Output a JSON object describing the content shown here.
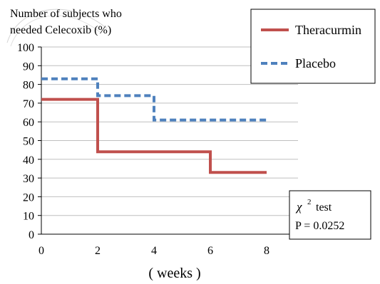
{
  "chart_data": {
    "type": "line",
    "step": true,
    "title": "Number of subjects who needed Celecoxib (%)",
    "ylabel": "Number of subjects who needed Celecoxib (%)",
    "xlabel": "( weeks )",
    "xlim": [
      0,
      8
    ],
    "ylim": [
      0,
      100
    ],
    "xticks": [
      0,
      2,
      4,
      6,
      8
    ],
    "yticks": [
      0,
      10,
      20,
      30,
      40,
      50,
      60,
      70,
      80,
      90,
      100
    ],
    "grid": true,
    "legend_position": "top-right",
    "series": [
      {
        "name": "Theracurmin",
        "color": "#c0504d",
        "dash": "solid",
        "points": [
          [
            0,
            72
          ],
          [
            2,
            72
          ],
          [
            2,
            44
          ],
          [
            6,
            44
          ],
          [
            6,
            33
          ],
          [
            8,
            33
          ]
        ]
      },
      {
        "name": "Placebo",
        "color": "#4f81bd",
        "dash": "dashed",
        "points": [
          [
            0,
            83
          ],
          [
            2,
            83
          ],
          [
            2,
            74
          ],
          [
            4,
            74
          ],
          [
            4,
            61
          ],
          [
            8,
            61
          ]
        ]
      }
    ],
    "annotation": {
      "line1_symbol": "χ",
      "line1_superscript": "2",
      "line1_text": "test",
      "line2": "P = 0.0252"
    }
  },
  "ylabel_lines": [
    "Number of subjects who",
    "needed Celecoxib (%)"
  ]
}
